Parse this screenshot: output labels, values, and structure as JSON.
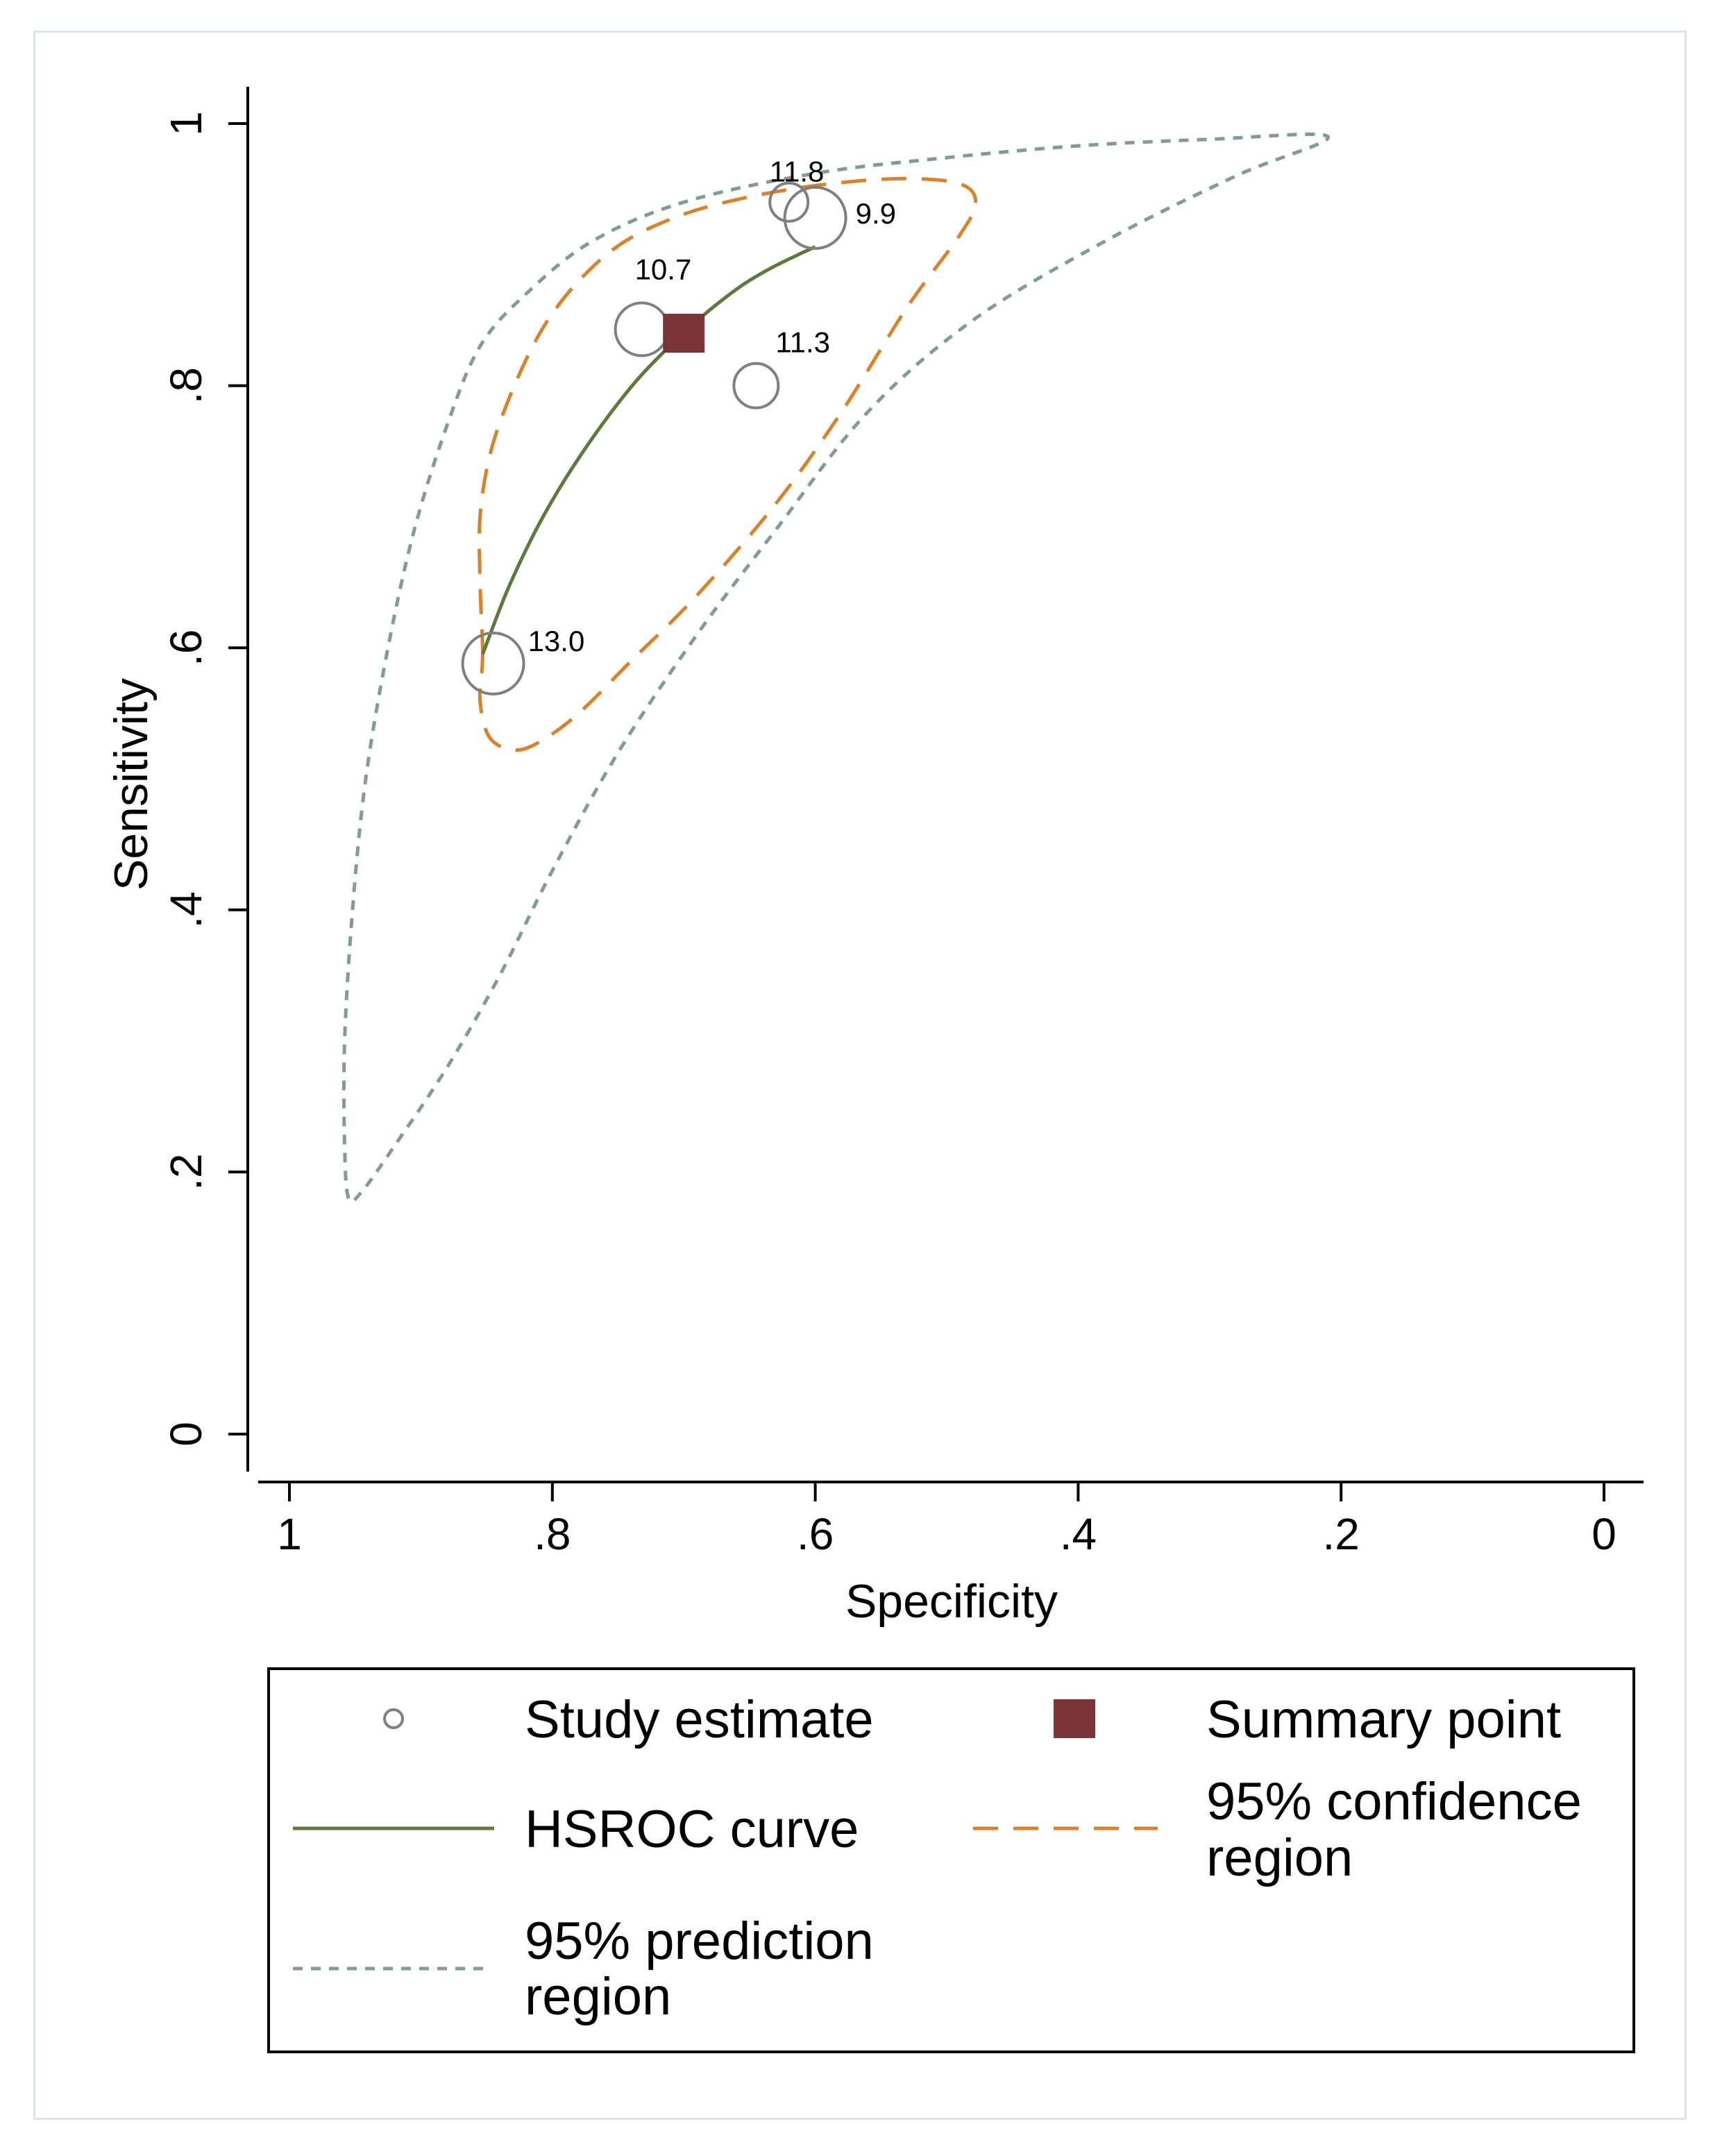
{
  "chart_data": {
    "type": "scatter",
    "xlabel": "Specificity",
    "ylabel": "Sensitivity",
    "xlim": [
      1,
      0
    ],
    "ylim": [
      0,
      1
    ],
    "x_ticks": [
      1,
      0.8,
      0.6,
      0.4,
      0.2,
      0
    ],
    "x_tick_labels": [
      "1",
      ".8",
      ".6",
      ".4",
      ".2",
      "0"
    ],
    "y_ticks": [
      0,
      0.2,
      0.4,
      0.6,
      0.8,
      1
    ],
    "y_tick_labels": [
      "0",
      ".2",
      ".4",
      ".6",
      ".8",
      "1"
    ],
    "studies": [
      {
        "label": "11.8",
        "specificity": 0.62,
        "sensitivity": 0.94,
        "weight": 0.45
      },
      {
        "label": "9.9",
        "specificity": 0.6,
        "sensitivity": 0.928,
        "weight": 1.0
      },
      {
        "label": "10.7",
        "specificity": 0.732,
        "sensitivity": 0.843,
        "weight": 0.8
      },
      {
        "label": "11.3",
        "specificity": 0.645,
        "sensitivity": 0.8,
        "weight": 0.6
      },
      {
        "label": "13.0",
        "specificity": 0.845,
        "sensitivity": 0.588,
        "weight": 1.0
      }
    ],
    "summary_point": {
      "specificity": 0.7,
      "sensitivity": 0.84
    },
    "hsroc_curve": [
      [
        0.853,
        0.595
      ],
      [
        0.835,
        0.642
      ],
      [
        0.815,
        0.685
      ],
      [
        0.795,
        0.721
      ],
      [
        0.775,
        0.752
      ],
      [
        0.755,
        0.78
      ],
      [
        0.735,
        0.805
      ],
      [
        0.715,
        0.826
      ],
      [
        0.695,
        0.845
      ],
      [
        0.675,
        0.862
      ],
      [
        0.655,
        0.877
      ],
      [
        0.635,
        0.889
      ],
      [
        0.615,
        0.899
      ],
      [
        0.6,
        0.906
      ]
    ],
    "confidence_region": [
      [
        0.853,
        0.595
      ],
      [
        0.855,
        0.65
      ],
      [
        0.855,
        0.7
      ],
      [
        0.848,
        0.745
      ],
      [
        0.835,
        0.785
      ],
      [
        0.815,
        0.83
      ],
      [
        0.795,
        0.862
      ],
      [
        0.77,
        0.89
      ],
      [
        0.745,
        0.91
      ],
      [
        0.715,
        0.925
      ],
      [
        0.68,
        0.937
      ],
      [
        0.63,
        0.948
      ],
      [
        0.58,
        0.955
      ],
      [
        0.53,
        0.958
      ],
      [
        0.49,
        0.954
      ],
      [
        0.478,
        0.94
      ],
      [
        0.49,
        0.915
      ],
      [
        0.53,
        0.86
      ],
      [
        0.58,
        0.78
      ],
      [
        0.63,
        0.71
      ],
      [
        0.69,
        0.64
      ],
      [
        0.74,
        0.59
      ],
      [
        0.78,
        0.55
      ],
      [
        0.81,
        0.528
      ],
      [
        0.83,
        0.522
      ],
      [
        0.848,
        0.532
      ],
      [
        0.855,
        0.56
      ],
      [
        0.853,
        0.595
      ]
    ],
    "prediction_region": [
      [
        0.955,
        0.18
      ],
      [
        0.958,
        0.22
      ],
      [
        0.958,
        0.3
      ],
      [
        0.952,
        0.4
      ],
      [
        0.942,
        0.5
      ],
      [
        0.925,
        0.6
      ],
      [
        0.905,
        0.69
      ],
      [
        0.88,
        0.77
      ],
      [
        0.855,
        0.83
      ],
      [
        0.82,
        0.87
      ],
      [
        0.77,
        0.91
      ],
      [
        0.7,
        0.94
      ],
      [
        0.6,
        0.962
      ],
      [
        0.5,
        0.974
      ],
      [
        0.4,
        0.983
      ],
      [
        0.3,
        0.988
      ],
      [
        0.21,
        0.99
      ],
      [
        0.28,
        0.96
      ],
      [
        0.38,
        0.91
      ],
      [
        0.48,
        0.85
      ],
      [
        0.56,
        0.78
      ],
      [
        0.63,
        0.69
      ],
      [
        0.69,
        0.61
      ],
      [
        0.75,
        0.52
      ],
      [
        0.8,
        0.43
      ],
      [
        0.84,
        0.35
      ],
      [
        0.88,
        0.28
      ],
      [
        0.92,
        0.22
      ],
      [
        0.945,
        0.185
      ],
      [
        0.955,
        0.18
      ]
    ],
    "colors": {
      "study": "#7f7f7f",
      "summary": "#7b3539",
      "hsroc": "#5d7a3c",
      "confidence": "#d9822b",
      "prediction": "#7f9b9b"
    }
  },
  "legend": {
    "study_estimate": "Study estimate",
    "summary_point": "Summary point",
    "hsroc_curve": "HSROC curve",
    "confidence_line1": "95% confidence",
    "confidence_line2": "region",
    "prediction_line1": "95% prediction",
    "prediction_line2": "region"
  }
}
